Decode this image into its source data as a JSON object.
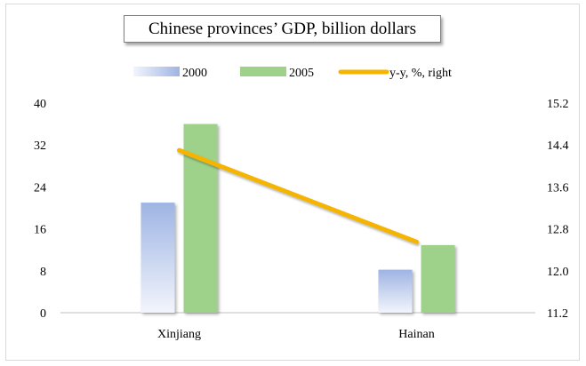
{
  "chart_data": {
    "type": "bar",
    "title": "Chinese provinces’ GDP, billion dollars",
    "categories": [
      "Xinjiang",
      "Hainan"
    ],
    "series": [
      {
        "name": "2000",
        "kind": "bar",
        "axis": "left",
        "values": [
          21,
          8.2
        ],
        "color": "#9fb4e4"
      },
      {
        "name": "2005",
        "kind": "bar",
        "axis": "left",
        "values": [
          36,
          12.9
        ],
        "color": "#9ed28b"
      },
      {
        "name": "y-y, %, right",
        "kind": "line",
        "axis": "right",
        "values": [
          14.3,
          12.55
        ],
        "color": "#f5b400"
      }
    ],
    "y_left": {
      "min": 0,
      "max": 40,
      "ticks": [
        "0",
        "8",
        "16",
        "24",
        "32",
        "40"
      ]
    },
    "y_right": {
      "min": 11.2,
      "max": 15.2,
      "ticks": [
        "11.2",
        "12.0",
        "12.8",
        "13.6",
        "14.4",
        "15.2"
      ]
    },
    "grid": false,
    "legend_position": "top"
  }
}
